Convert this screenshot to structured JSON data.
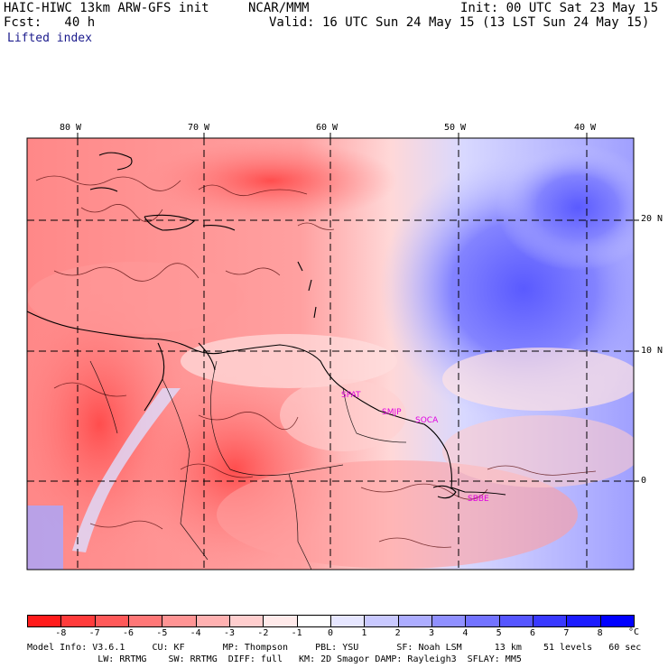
{
  "header": {
    "model": "HAIC-HIWC 13km ARW-GFS init",
    "org": "NCAR/MMM",
    "init": "Init: 00 UTC Sat 23 May 15",
    "fcst": "Fcst:   40 h",
    "valid": "Valid: 16 UTC Sun 24 May 15 (13 LST Sun 24 May 15)",
    "field": "Lifted index"
  },
  "map": {
    "lon_labels": [
      "80 W",
      "70 W",
      "60 W",
      "50 W",
      "40 W"
    ],
    "lat_labels": [
      "20 N",
      "10 N",
      "0"
    ],
    "stations": [
      "SPAT",
      "SMJP",
      "SOCA",
      "SBBE"
    ],
    "colors": {
      "coast": "#000000",
      "grid": "#000000",
      "station": "#e000e0"
    }
  },
  "colorbar": {
    "labels": [
      "-8",
      "-7",
      "-6",
      "-5",
      "-4",
      "-3",
      "-2",
      "-1",
      "0",
      "1",
      "2",
      "3",
      "4",
      "5",
      "6",
      "7",
      "8"
    ],
    "unit": "°C",
    "colors": [
      "#ff1b1b",
      "#ff3b3b",
      "#ff5959",
      "#ff7777",
      "#ff9494",
      "#ffb1b1",
      "#ffcece",
      "#ffeaea",
      "#ffffff",
      "#e6e6ff",
      "#c9c9ff",
      "#adadff",
      "#9090ff",
      "#7373ff",
      "#5656ff",
      "#3939ff",
      "#1c1cff",
      "#0000ff"
    ]
  },
  "footer": {
    "line1": "Model Info: V3.6.1     CU: KF       MP: Thompson     PBL: YSU       SF: Noah LSM      13 km    51 levels   60 sec",
    "line2": "             LW: RRTMG    SW: RRTMG  DIFF: full   KM: 2D Smagor DAMP: Rayleigh3  SFLAY: MM5"
  }
}
